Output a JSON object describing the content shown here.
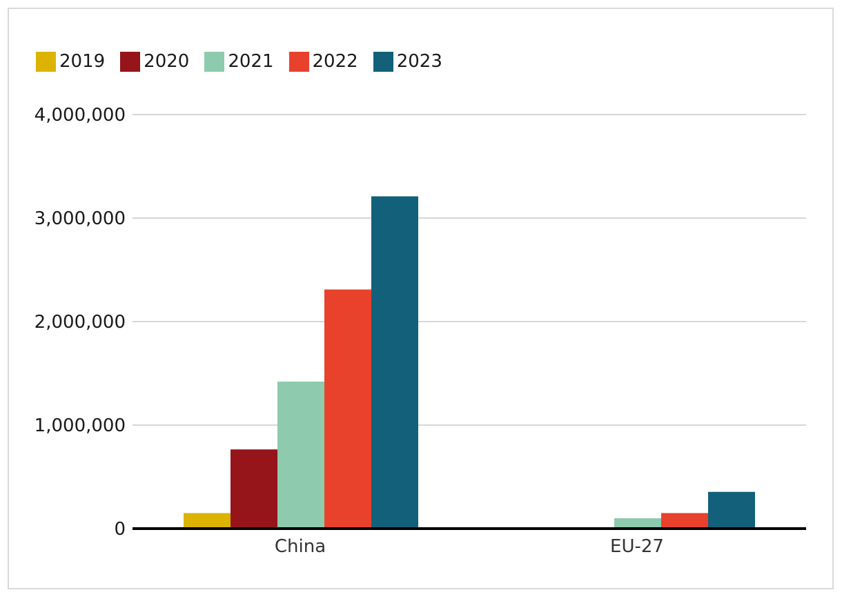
{
  "chart_data": {
    "type": "bar",
    "categories": [
      "China",
      "EU-27"
    ],
    "series": [
      {
        "name": "2019",
        "color": "#dbb300",
        "values": [
          150000,
          0
        ]
      },
      {
        "name": "2020",
        "color": "#95151a",
        "values": [
          765000,
          0
        ]
      },
      {
        "name": "2021",
        "color": "#8dcaae",
        "values": [
          1420000,
          100000
        ]
      },
      {
        "name": "2022",
        "color": "#e8412c",
        "values": [
          2310000,
          150000
        ]
      },
      {
        "name": "2023",
        "color": "#126079",
        "values": [
          3210000,
          355000
        ]
      }
    ],
    "ylim": [
      0,
      4000000
    ],
    "yticks": [
      0,
      1000000,
      2000000,
      3000000,
      4000000
    ],
    "ytick_labels": [
      "0",
      "1,000,000",
      "2,000,000",
      "3,000,000",
      "4,000,000"
    ],
    "title": "",
    "xlabel": "",
    "ylabel": "",
    "grid": true,
    "legend_position": "top-left"
  }
}
